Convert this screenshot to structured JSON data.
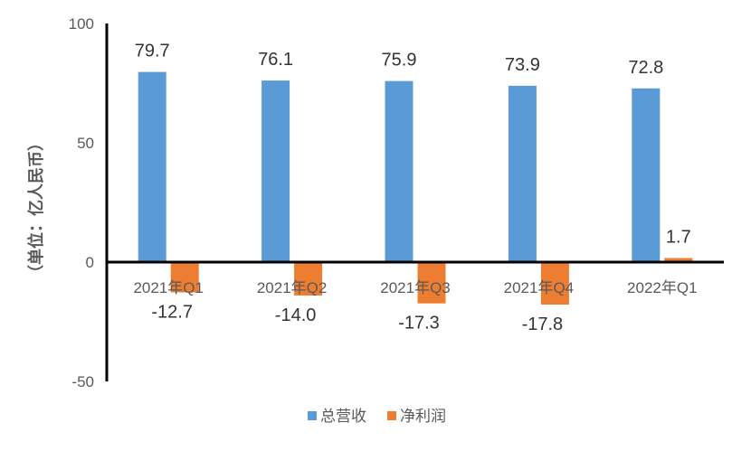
{
  "chart_data": {
    "type": "bar",
    "categories": [
      "2021年Q1",
      "2021年Q2",
      "2021年Q3",
      "2021年Q4",
      "2022年Q1"
    ],
    "series": [
      {
        "name": "总营收",
        "values": [
          79.7,
          76.1,
          75.9,
          73.9,
          72.8
        ],
        "color": "#5B9BD5"
      },
      {
        "name": "净利润",
        "values": [
          -12.7,
          -14.0,
          -17.3,
          -17.8,
          1.7
        ],
        "color": "#ED7D31"
      }
    ],
    "data_labels": {
      "总营收": [
        "79.7",
        "76.1",
        "75.9",
        "73.9",
        "72.8"
      ],
      "净利润": [
        "-12.7",
        "-14.0",
        "-17.3",
        "-17.8",
        "1.7"
      ]
    },
    "ylabel": "（单位：亿人民币）",
    "ylim": [
      -50,
      100
    ],
    "yticks": [
      -50,
      0,
      50,
      100
    ],
    "legend_position": "bottom",
    "grid": false
  }
}
